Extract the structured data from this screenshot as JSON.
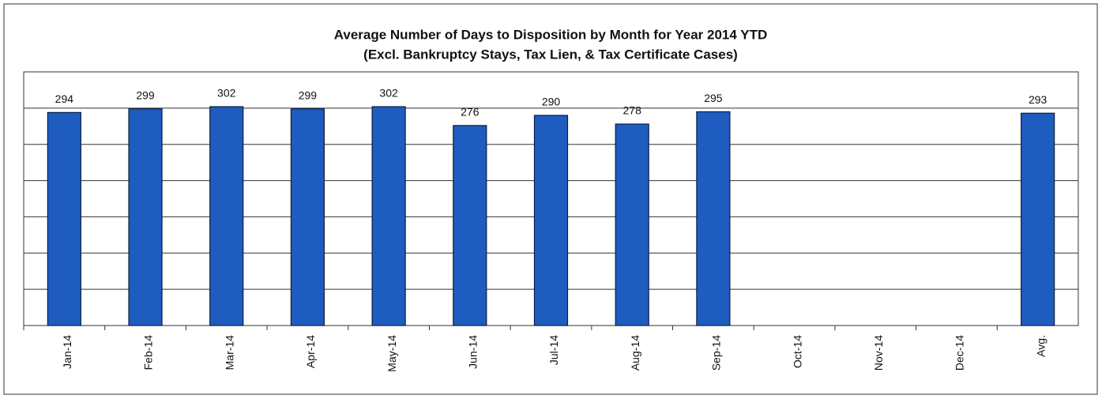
{
  "chart_data": {
    "type": "bar",
    "title": "Average Number of Days to Disposition  by Month for Year 2014 YTD",
    "subtitle": "(Excl. Bankruptcy  Stays, Tax Lien, & Tax Certificate Cases)",
    "categories": [
      "Jan-14",
      "Feb-14",
      "Mar-14",
      "Apr-14",
      "May-14",
      "Jun-14",
      "Jul-14",
      "Aug-14",
      "Sep-14",
      "Oct-14",
      "Nov-14",
      "Dec-14",
      "Avg."
    ],
    "values": [
      294,
      299,
      302,
      299,
      302,
      276,
      290,
      278,
      295,
      null,
      null,
      null,
      293
    ],
    "color": "#1f5cc0",
    "ylim": [
      0,
      350
    ],
    "yticks": [
      0,
      50,
      100,
      150,
      200,
      250,
      300,
      350
    ],
    "grid": true
  }
}
